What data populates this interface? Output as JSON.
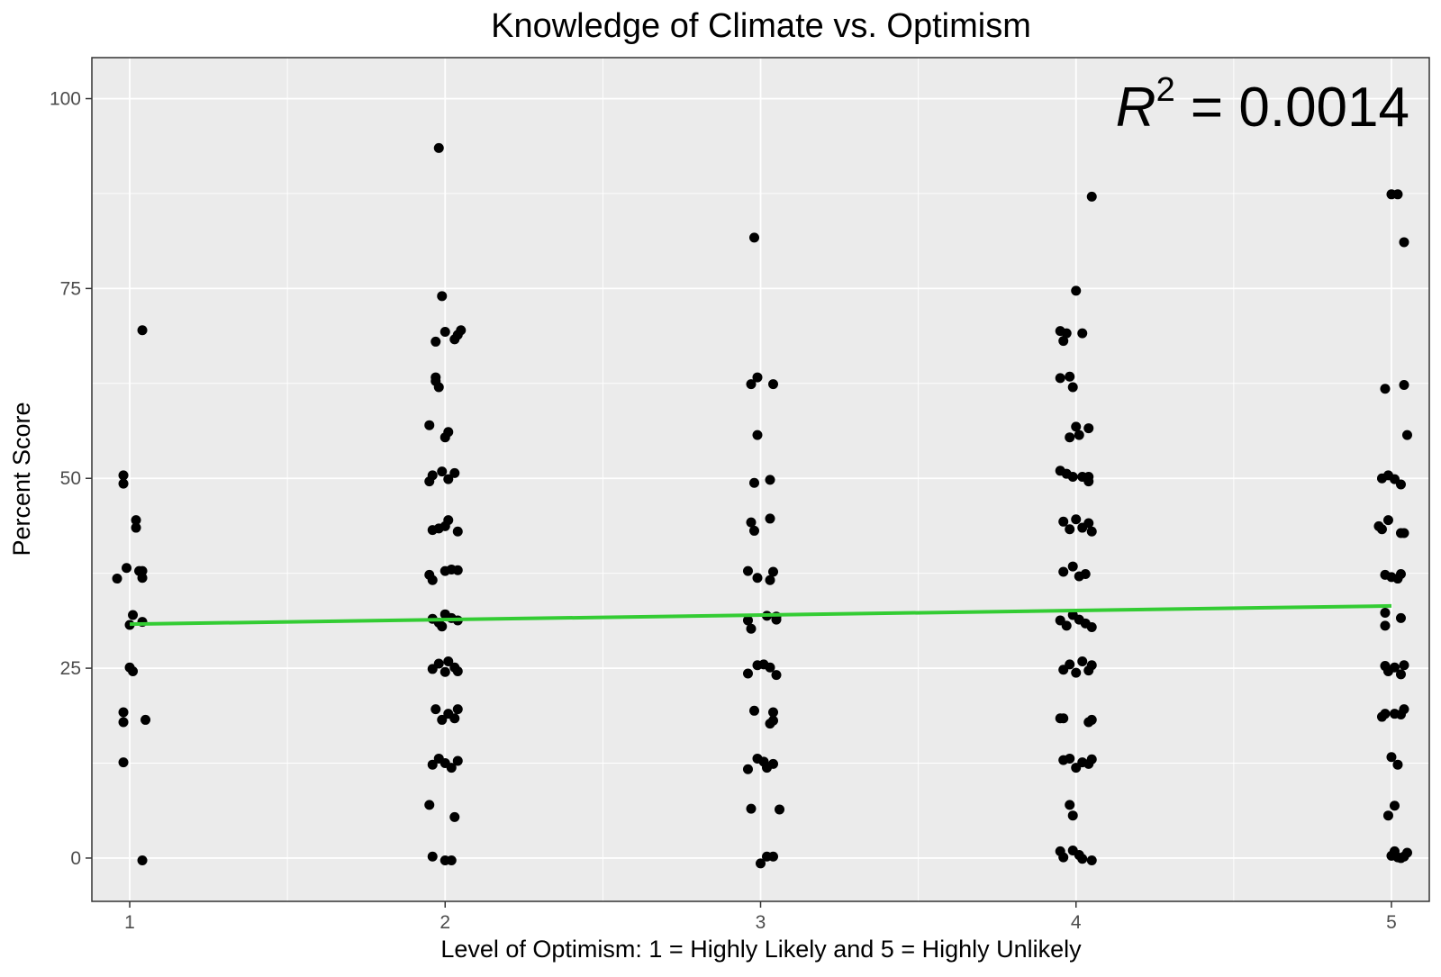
{
  "chart_data": {
    "type": "scatter",
    "title": "Knowledge of Climate vs. Optimism",
    "xlabel": "Level of Optimism: 1 = Highly Likely and 5 = Highly Unlikely",
    "ylabel": "Percent Score",
    "xlim": [
      0.88,
      5.12
    ],
    "ylim": [
      -5.7,
      105.4
    ],
    "x_ticks": [
      1,
      2,
      3,
      4,
      5
    ],
    "y_ticks": [
      0,
      25,
      50,
      75,
      100
    ],
    "grid": true,
    "annotation": {
      "variable": "R",
      "exponent": "2",
      "text": " = 0.0014",
      "value": 0.0014
    },
    "regression_line": {
      "color": "#33cc33",
      "x": [
        1,
        5
      ],
      "y": [
        30.8,
        33.2
      ]
    },
    "points_color": "#000000",
    "points": [
      [
        0.96,
        36.8
      ],
      [
        0.98,
        49.3
      ],
      [
        0.98,
        50.4
      ],
      [
        0.99,
        38.2
      ],
      [
        0.98,
        19.2
      ],
      [
        0.98,
        17.9
      ],
      [
        0.98,
        12.6
      ],
      [
        1.0,
        30.7
      ],
      [
        1.0,
        25.1
      ],
      [
        1.01,
        24.6
      ],
      [
        1.01,
        32.0
      ],
      [
        1.02,
        44.5
      ],
      [
        1.02,
        43.5
      ],
      [
        1.03,
        37.8
      ],
      [
        1.04,
        31.1
      ],
      [
        1.04,
        36.9
      ],
      [
        1.04,
        37.8
      ],
      [
        1.05,
        18.2
      ],
      [
        1.04,
        -0.3
      ],
      [
        1.04,
        69.5
      ],
      [
        1.98,
        93.5
      ],
      [
        1.99,
        74.0
      ],
      [
        2.0,
        69.3
      ],
      [
        1.97,
        68.0
      ],
      [
        2.03,
        68.3
      ],
      [
        2.04,
        68.9
      ],
      [
        2.05,
        69.5
      ],
      [
        1.97,
        63.3
      ],
      [
        1.97,
        62.8
      ],
      [
        1.98,
        62.0
      ],
      [
        1.95,
        57.0
      ],
      [
        2.0,
        55.4
      ],
      [
        2.01,
        56.1
      ],
      [
        1.95,
        49.6
      ],
      [
        1.96,
        50.4
      ],
      [
        1.99,
        50.9
      ],
      [
        2.01,
        49.9
      ],
      [
        2.03,
        50.7
      ],
      [
        1.96,
        43.2
      ],
      [
        1.98,
        43.4
      ],
      [
        2.0,
        43.7
      ],
      [
        2.01,
        44.5
      ],
      [
        2.04,
        43.0
      ],
      [
        1.95,
        37.3
      ],
      [
        1.96,
        36.6
      ],
      [
        2.0,
        37.8
      ],
      [
        2.02,
        38.0
      ],
      [
        2.04,
        37.9
      ],
      [
        1.96,
        31.5
      ],
      [
        1.98,
        31.0
      ],
      [
        2.0,
        32.1
      ],
      [
        2.02,
        31.6
      ],
      [
        2.04,
        31.3
      ],
      [
        1.99,
        30.5
      ],
      [
        1.96,
        24.9
      ],
      [
        1.98,
        25.6
      ],
      [
        2.0,
        24.5
      ],
      [
        2.01,
        25.9
      ],
      [
        2.03,
        25.1
      ],
      [
        2.04,
        24.6
      ],
      [
        1.97,
        19.6
      ],
      [
        1.99,
        18.2
      ],
      [
        2.01,
        19.0
      ],
      [
        2.03,
        18.4
      ],
      [
        2.04,
        19.6
      ],
      [
        1.96,
        12.3
      ],
      [
        1.98,
        13.1
      ],
      [
        2.0,
        12.5
      ],
      [
        2.02,
        11.9
      ],
      [
        2.04,
        12.8
      ],
      [
        1.95,
        7.0
      ],
      [
        2.03,
        5.4
      ],
      [
        1.96,
        0.2
      ],
      [
        2.0,
        -0.3
      ],
      [
        2.02,
        -0.3
      ],
      [
        2.98,
        81.7
      ],
      [
        2.97,
        62.4
      ],
      [
        2.99,
        63.3
      ],
      [
        3.04,
        62.4
      ],
      [
        2.99,
        55.7
      ],
      [
        2.98,
        49.4
      ],
      [
        3.03,
        49.8
      ],
      [
        2.97,
        44.2
      ],
      [
        2.98,
        43.1
      ],
      [
        3.03,
        44.7
      ],
      [
        2.96,
        37.8
      ],
      [
        2.99,
        36.9
      ],
      [
        3.04,
        37.7
      ],
      [
        3.03,
        36.6
      ],
      [
        2.96,
        31.3
      ],
      [
        2.97,
        30.2
      ],
      [
        3.02,
        31.9
      ],
      [
        3.05,
        31.4
      ],
      [
        3.05,
        31.8
      ],
      [
        2.99,
        25.4
      ],
      [
        3.01,
        25.5
      ],
      [
        3.03,
        25.1
      ],
      [
        3.05,
        24.1
      ],
      [
        2.96,
        24.3
      ],
      [
        2.98,
        19.4
      ],
      [
        3.04,
        19.2
      ],
      [
        3.04,
        18.1
      ],
      [
        3.03,
        17.7
      ],
      [
        2.99,
        13.1
      ],
      [
        3.01,
        12.7
      ],
      [
        3.04,
        12.4
      ],
      [
        3.02,
        11.9
      ],
      [
        2.96,
        11.7
      ],
      [
        2.97,
        6.5
      ],
      [
        3.06,
        6.4
      ],
      [
        3.0,
        -0.7
      ],
      [
        3.02,
        0.2
      ],
      [
        3.04,
        0.2
      ],
      [
        4.05,
        87.1
      ],
      [
        4.0,
        74.7
      ],
      [
        3.95,
        69.4
      ],
      [
        3.97,
        69.1
      ],
      [
        3.96,
        68.1
      ],
      [
        4.02,
        69.1
      ],
      [
        3.95,
        63.2
      ],
      [
        3.98,
        63.4
      ],
      [
        3.99,
        62.0
      ],
      [
        4.0,
        56.8
      ],
      [
        4.04,
        56.6
      ],
      [
        3.98,
        55.4
      ],
      [
        4.01,
        55.7
      ],
      [
        3.95,
        51.0
      ],
      [
        3.97,
        50.6
      ],
      [
        3.99,
        50.2
      ],
      [
        4.02,
        50.2
      ],
      [
        4.04,
        50.2
      ],
      [
        4.04,
        49.6
      ],
      [
        3.96,
        44.3
      ],
      [
        3.98,
        43.3
      ],
      [
        4.0,
        44.6
      ],
      [
        4.02,
        43.5
      ],
      [
        4.04,
        44.1
      ],
      [
        4.05,
        43.0
      ],
      [
        3.96,
        37.7
      ],
      [
        3.99,
        38.4
      ],
      [
        4.01,
        37.1
      ],
      [
        4.03,
        37.4
      ],
      [
        3.95,
        31.3
      ],
      [
        3.97,
        30.6
      ],
      [
        3.99,
        32.0
      ],
      [
        4.01,
        31.4
      ],
      [
        4.03,
        30.9
      ],
      [
        4.05,
        30.4
      ],
      [
        3.96,
        24.8
      ],
      [
        3.98,
        25.5
      ],
      [
        4.0,
        24.4
      ],
      [
        4.02,
        25.9
      ],
      [
        4.04,
        24.7
      ],
      [
        4.05,
        25.4
      ],
      [
        3.95,
        18.4
      ],
      [
        3.96,
        18.4
      ],
      [
        4.04,
        17.9
      ],
      [
        4.05,
        18.2
      ],
      [
        3.96,
        12.9
      ],
      [
        3.98,
        13.1
      ],
      [
        4.0,
        11.9
      ],
      [
        4.02,
        12.6
      ],
      [
        4.04,
        12.4
      ],
      [
        4.05,
        13.0
      ],
      [
        3.98,
        7.0
      ],
      [
        3.99,
        5.6
      ],
      [
        3.95,
        0.9
      ],
      [
        3.96,
        0.1
      ],
      [
        3.99,
        1.0
      ],
      [
        4.01,
        0.4
      ],
      [
        4.02,
        -0.1
      ],
      [
        4.05,
        -0.3
      ],
      [
        5.0,
        87.4
      ],
      [
        5.02,
        87.4
      ],
      [
        5.04,
        81.1
      ],
      [
        4.98,
        61.8
      ],
      [
        5.04,
        62.3
      ],
      [
        5.05,
        55.7
      ],
      [
        4.97,
        50.0
      ],
      [
        4.99,
        50.4
      ],
      [
        5.01,
        49.9
      ],
      [
        5.03,
        49.2
      ],
      [
        4.96,
        43.7
      ],
      [
        4.97,
        43.3
      ],
      [
        4.99,
        44.5
      ],
      [
        5.03,
        42.8
      ],
      [
        5.04,
        42.8
      ],
      [
        4.98,
        37.3
      ],
      [
        5.0,
        37.0
      ],
      [
        5.02,
        36.8
      ],
      [
        5.03,
        37.4
      ],
      [
        4.98,
        32.3
      ],
      [
        5.03,
        31.6
      ],
      [
        4.98,
        30.6
      ],
      [
        4.98,
        25.3
      ],
      [
        4.99,
        24.6
      ],
      [
        5.01,
        25.1
      ],
      [
        5.03,
        24.2
      ],
      [
        5.04,
        25.4
      ],
      [
        4.97,
        18.6
      ],
      [
        4.98,
        19.0
      ],
      [
        5.01,
        19.0
      ],
      [
        5.03,
        18.9
      ],
      [
        5.04,
        19.6
      ],
      [
        5.0,
        13.3
      ],
      [
        5.02,
        12.3
      ],
      [
        4.99,
        5.6
      ],
      [
        5.01,
        6.9
      ],
      [
        5.0,
        0.3
      ],
      [
        5.01,
        0.9
      ],
      [
        5.02,
        0.1
      ],
      [
        5.03,
        0.0
      ],
      [
        5.04,
        0.2
      ],
      [
        5.05,
        0.7
      ]
    ]
  }
}
